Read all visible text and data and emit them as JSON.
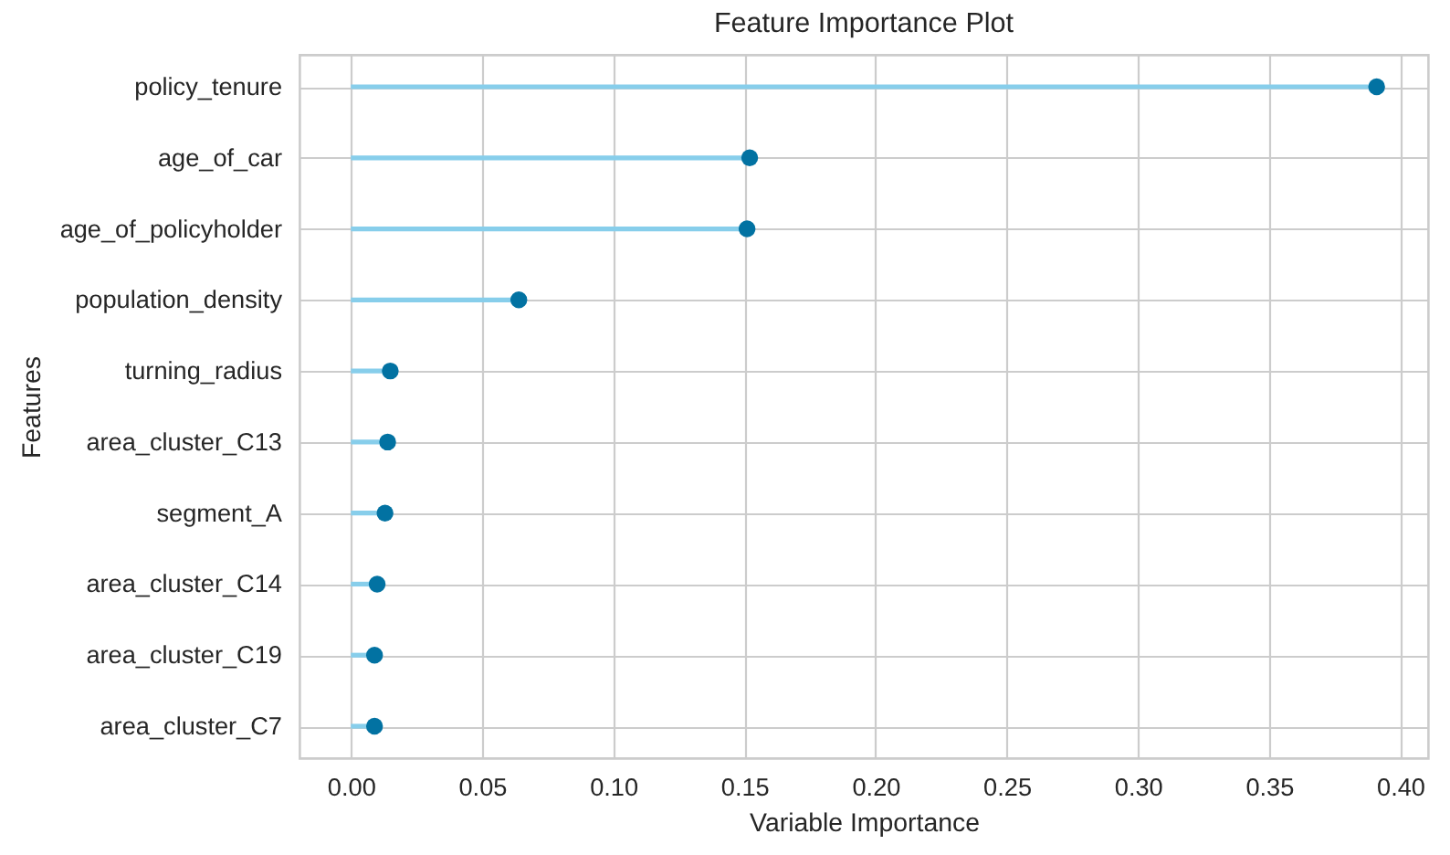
{
  "chart_data": {
    "type": "lollipop",
    "orientation": "horizontal",
    "title": "Feature Importance Plot",
    "xlabel": "Variable Importance",
    "ylabel": "Features",
    "categories": [
      "policy_tenure",
      "age_of_car",
      "age_of_policyholder",
      "population_density",
      "turning_radius",
      "area_cluster_C13",
      "segment_A",
      "area_cluster_C14",
      "area_cluster_C19",
      "area_cluster_C7"
    ],
    "values": [
      0.391,
      0.152,
      0.151,
      0.064,
      0.015,
      0.014,
      0.013,
      0.01,
      0.009,
      0.009
    ],
    "color": "#0272a2",
    "marker": "circle",
    "xlim": [
      -0.0196,
      0.4106
    ],
    "xticks": [
      {
        "value": 0,
        "label": "0.00"
      },
      {
        "value": 0.05,
        "label": "0.05"
      },
      {
        "value": 0.1,
        "label": "0.10"
      },
      {
        "value": 0.15,
        "label": "0.15"
      },
      {
        "value": 0.2,
        "label": "0.20"
      },
      {
        "value": 0.25,
        "label": "0.25"
      },
      {
        "value": 0.3,
        "label": "0.30"
      },
      {
        "value": 0.35,
        "label": "0.35"
      },
      {
        "value": 0.4,
        "label": "0.40"
      }
    ],
    "grid": true
  }
}
